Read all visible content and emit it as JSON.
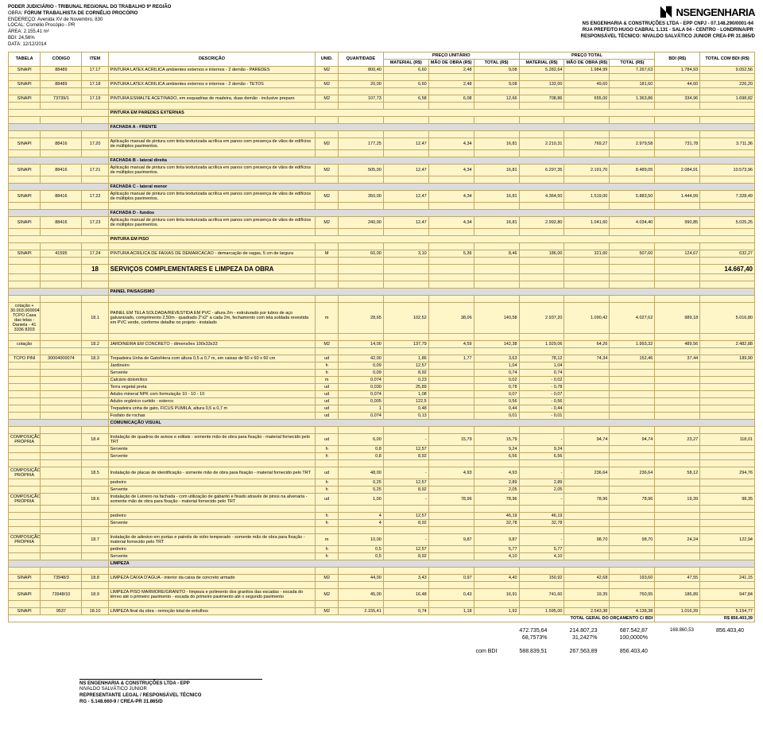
{
  "header": {
    "court": "PODER JUDICIÁRIO - TRIBUNAL REGIONAL DO TRABALHO 9ª REGIÃO",
    "obra_label": "OBRA:",
    "obra": "FÓRUM TRABALHISTA DE CORNÉLIO PROCÓPIO",
    "endereco_label": "ENDEREÇO:",
    "endereco": "Avenida XV de Novembro, 830",
    "local_label": "LOCAL:",
    "local": "Cornélio Procópio - PR",
    "area_label": "ÁREA:",
    "area": "2.155,41 m²",
    "bdi_label": "BDI:",
    "bdi": "24,56%",
    "data_label": "DATA:",
    "data": "12/12/2014",
    "company_name": "NSENGENHARIA",
    "line1": "NS ENGENHARIA & CONSTRUÇÕES LTDA - EPP        CNPJ - 07.148.290/0001-64",
    "line2": "RUA PREFEITO HUGO CABRAL 1.131 - SALA 04 - CENTRO - LONDRINA/PR",
    "line3": "RESPONSÁVEL TÉCNICO: NIVALDO SALVÁTICO JUNIOR CREA-PR 31.865/D"
  },
  "cols": {
    "tabela": "TABELA",
    "codigo": "CÓDIGO",
    "item": "ITEM",
    "descricao": "DESCRIÇÃO",
    "unid": "UNID.",
    "quantidade": "QUANTIDADE",
    "preco_unit": "PREÇO UNITÁRIO",
    "preco_total": "PREÇO TOTAL",
    "material": "MATERIAL (R$)",
    "mao": "MÃO DE OBRA (R$)",
    "total": "TOTAL (R$)",
    "bdi_rs": "BDI (R$)",
    "total_bdi": "TOTAL COM BDI (R$)"
  },
  "rows": [
    {
      "t": "data",
      "tab": "SINAPI",
      "cod": "88489",
      "item": "17.17",
      "desc": "PINTURA LATEX ACRILICA ambientes externos e internos - 2 demão - PAREDES",
      "un": "M2",
      "qtd": "800,40",
      "umat": "6,60",
      "umao": "2,48",
      "utot": "9,08",
      "tmat": "5.282,64",
      "tmao": "1.984,99",
      "ttot": "7.267,63",
      "bdi": "1.784,93",
      "tcb": "9.052,56"
    },
    {
      "t": "empty"
    },
    {
      "t": "data",
      "tab": "SINAPI",
      "cod": "88489",
      "item": "17.18",
      "desc": "PINTURA LATEX ACRILICA ambientes externos e internos - 2 demão - TETOS",
      "un": "M2",
      "qtd": "20,00",
      "umat": "6,60",
      "umao": "2,48",
      "utot": "9,08",
      "tmat": "132,00",
      "tmao": "49,60",
      "ttot": "181,60",
      "bdi": "44,60",
      "tcb": "226,20"
    },
    {
      "t": "empty"
    },
    {
      "t": "data",
      "tab": "SINAPI",
      "cod": "73739/1",
      "item": "17.19",
      "desc": "PINTURA ESMALTE ACETINADO, em esquadrias de madeira, duas demão - inclusive preparo",
      "un": "M2",
      "qtd": "107,73",
      "umat": "6,58",
      "umao": "6,08",
      "utot": "12,66",
      "tmat": "708,86",
      "tmao": "655,00",
      "ttot": "1.363,86",
      "bdi": "334,96",
      "tcb": "1.698,82"
    },
    {
      "t": "empty"
    },
    {
      "t": "section",
      "desc": "PINTURA EM PAREDES EXTERNAS"
    },
    {
      "t": "empty"
    },
    {
      "t": "grey",
      "desc": "FACHADA A - FRENTE"
    },
    {
      "t": "empty"
    },
    {
      "t": "data",
      "tab": "SINAPI",
      "cod": "88416",
      "item": "17.20",
      "desc": "Aplicação manual de pintura com tinta texturizada acrílica em panos com presença de vãos de edifícios de múltiplos pavimentos.",
      "un": "M2",
      "qtd": "177,25",
      "umat": "12,47",
      "umao": "4,34",
      "utot": "16,81",
      "tmat": "2.210,31",
      "tmao": "769,27",
      "ttot": "2.979,58",
      "bdi": "731,78",
      "tcb": "3.711,36"
    },
    {
      "t": "empty"
    },
    {
      "t": "grey",
      "desc": "FACHADA B - lateral direita"
    },
    {
      "t": "data",
      "tab": "SINAPI",
      "cod": "88416",
      "item": "17.21",
      "desc": "Aplicação manual de pintura com tinta texturizada acrílica em panos com presença de vãos de edifícios de múltiplos pavimentos.",
      "un": "M2",
      "qtd": "505,00",
      "umat": "12,47",
      "umao": "4,34",
      "utot": "16,81",
      "tmat": "6.297,35",
      "tmao": "2.191,70",
      "ttot": "8.489,05",
      "bdi": "2.084,91",
      "tcb": "10.573,96"
    },
    {
      "t": "empty"
    },
    {
      "t": "grey",
      "desc": "FACHADA C - lateral menor"
    },
    {
      "t": "data",
      "tab": "SINAPI",
      "cod": "88416",
      "item": "17.22",
      "desc": "Aplicação manual de pintura com tinta texturizada acrílica em panos com presença de vãos de edifícios de múltiplos pavimentos.",
      "un": "M2",
      "qtd": "350,00",
      "umat": "12,47",
      "umao": "4,34",
      "utot": "16,81",
      "tmat": "4.364,50",
      "tmao": "1.519,00",
      "ttot": "5.883,50",
      "bdi": "1.444,99",
      "tcb": "7.328,49"
    },
    {
      "t": "empty"
    },
    {
      "t": "grey",
      "desc": "FACHADA D - fundos"
    },
    {
      "t": "data",
      "tab": "SINAPI",
      "cod": "88416",
      "item": "17.23",
      "desc": "Aplicação manual de pintura com tinta texturizada acrílica em panos com presença de vãos de edifícios de múltiplos pavimentos.",
      "un": "M2",
      "qtd": "240,00",
      "umat": "12,47",
      "umao": "4,34",
      "utot": "16,81",
      "tmat": "2.992,80",
      "tmao": "1.041,60",
      "ttot": "4.034,40",
      "bdi": "990,85",
      "tcb": "5.025,25"
    },
    {
      "t": "empty"
    },
    {
      "t": "section",
      "desc": "PINTURA EM PISO"
    },
    {
      "t": "empty"
    },
    {
      "t": "data",
      "tab": "SINAPI",
      "cod": "41595",
      "item": "17.24",
      "desc": "PINTURA ACRILICA DE FAIXAS DE DEMARCACAO - demarcação de vagas, 5 cm de largura",
      "un": "M",
      "qtd": "60,00",
      "umat": "3,10",
      "umao": "5,36",
      "utot": "8,46",
      "tmat": "186,00",
      "tmao": "321,60",
      "ttot": "507,60",
      "bdi": "124,67",
      "tcb": "632,27"
    },
    {
      "t": "empty"
    },
    {
      "t": "section18",
      "item": "18",
      "desc": "SERVIÇOS COMPLEMENTARES E LIMPEZA DA OBRA",
      "tcb": "14.667,40"
    },
    {
      "t": "empty"
    },
    {
      "t": "empty"
    },
    {
      "t": "grey",
      "desc": "PAINEL PAISAGISMO"
    },
    {
      "t": "empty"
    },
    {
      "t": "data",
      "tab": "cotação + 30.003.000004 TCPO Casa das telas - Daniela - 41 3336 8203",
      "cod": "",
      "item": "18.1",
      "desc": "PAINEL EM TELA SOLDADA/REVESTIDA EM PVC - altura 2m - estruturado por tubos de aço galvanizado, comprimento 2,50m - quadrado 2\"x2\" a cada 2m, fechamento com tela soldada revestida em PVC verde, conforme detalhe no projeto - instalado",
      "un": "m",
      "qtd": "28,65",
      "umat": "102,52",
      "umao": "38,06",
      "utot": "140,58",
      "tmat": "2.937,20",
      "tmao": "1.090,42",
      "ttot": "4.027,62",
      "bdi": "989,18",
      "tcb": "5.016,80"
    },
    {
      "t": "empty"
    },
    {
      "t": "data",
      "tab": "cotação",
      "cod": "",
      "item": "18.2",
      "desc": "JARDINEIRA EM CONCRETO - dimensões 100x33x33",
      "un": "M2",
      "qtd": "14,00",
      "umat": "137,79",
      "umao": "4,59",
      "utot": "142,38",
      "tmat": "1.929,06",
      "tmao": "64,26",
      "ttot": "1.993,32",
      "bdi": "489,56",
      "tcb": "2.482,88"
    },
    {
      "t": "empty"
    },
    {
      "t": "data",
      "tab": "TCPO PINI",
      "cod": "30004000074",
      "item": "18.3",
      "desc": "Trepadeira Unha de Gato/Hera com altura 0,5 a 0,7 m, em caixas de 60 x 60 x 60 cm",
      "un": "ud",
      "qtd": "42,00",
      "umat": "1,86",
      "umao": "1,77",
      "utot": "3,63",
      "tmat": "78,12",
      "tmao": "74,34",
      "ttot": "152,46",
      "bdi": "37,44",
      "tcb": "189,90"
    },
    {
      "t": "sub",
      "desc": "Jardineiro",
      "un": "h",
      "qtd": "0,09",
      "umat": "12,57",
      "umao": "",
      "utot": "1,04",
      "tmat": "1,04"
    },
    {
      "t": "sub",
      "desc": "Servente",
      "un": "h",
      "qtd": "0,09",
      "umat": "8,92",
      "umao": "",
      "utot": "0,74",
      "tmat": "0,74"
    },
    {
      "t": "sub",
      "desc": "Calcário dolomítico",
      "un": "m",
      "qtd": "0,074",
      "umat": "0,23",
      "umao": "",
      "utot": "0,02",
      "tmat": "- 0,02"
    },
    {
      "t": "sub",
      "desc": "Terra vegetal preta",
      "un": "ud",
      "qtd": "0,030",
      "umat": "25,89",
      "umao": "",
      "utot": "0,78",
      "tmat": "- 0,78"
    },
    {
      "t": "sub",
      "desc": "Adubo mineral NPK com formulação 10 - 10 - 10",
      "un": "ud",
      "qtd": "0,074",
      "umat": "1,08",
      "umao": "",
      "utot": "0,07",
      "tmat": "- 0,07"
    },
    {
      "t": "sub",
      "desc": "Adubo orgânico curtido - esterco",
      "un": "ud",
      "qtd": "0,005",
      "umat": "122,5",
      "umao": "",
      "utot": "0,56",
      "tmat": "- 0,56"
    },
    {
      "t": "sub",
      "desc": "Trepadeira unha de gato, FICUS PUMILA, altura 0,5 a 0,7 m",
      "un": "ud",
      "qtd": "1",
      "umat": "0,48",
      "umao": "",
      "utot": "0,44",
      "tmat": "- 0,44"
    },
    {
      "t": "sub",
      "desc": "Fosfato de rochas",
      "un": "ud",
      "qtd": "0,074",
      "umat": "0,13",
      "umao": "",
      "utot": "0,01",
      "tmat": "- 0,01"
    },
    {
      "t": "grey",
      "desc": "COMUNICAÇÃO VISUAL"
    },
    {
      "t": "empty"
    },
    {
      "t": "data",
      "tab": "COMPOSIÇÃO PRÓPRIA",
      "cod": "",
      "item": "18.4",
      "desc": "Instalação de quadros de avisos e editais - somente mão de obra para fixação - material fornecido pelo TRT",
      "un": "ud",
      "qtd": "6,00",
      "umat": "-",
      "umao": "15,79",
      "utot": "15,79",
      "tmat": "-",
      "tmao": "94,74",
      "ttot": "94,74",
      "bdi": "23,27",
      "tcb": "118,01"
    },
    {
      "t": "sub",
      "desc": "Servente",
      "un": "h",
      "qtd": "0,8",
      "umat": "12,57",
      "umao": "",
      "utot": "9,24",
      "tmat": "9,24"
    },
    {
      "t": "sub",
      "desc": "Servente",
      "un": "h",
      "qtd": "0,8",
      "umat": "8,92",
      "umao": "",
      "utot": "6,56",
      "tmat": "6,56"
    },
    {
      "t": "empty"
    },
    {
      "t": "data",
      "tab": "COMPOSIÇÃO PRÓPRIA",
      "cod": "",
      "item": "18.5",
      "desc": "Instalação de placas de identificação - somente mão de obra para fixação - material fornecido pelo TRT",
      "un": "ud",
      "qtd": "48,00",
      "umat": "-",
      "umao": "4,93",
      "utot": "4,93",
      "tmat": "-",
      "tmao": "236,64",
      "ttot": "236,64",
      "bdi": "58,12",
      "tcb": "294,76"
    },
    {
      "t": "sub",
      "desc": "pedreiro",
      "un": "h",
      "qtd": "0,25",
      "umat": "12,57",
      "umao": "",
      "utot": "2,89",
      "tmat": "2,89"
    },
    {
      "t": "sub",
      "desc": "Servente",
      "un": "h",
      "qtd": "0,25",
      "umat": "8,92",
      "umao": "",
      "utot": "2,05",
      "tmat": "2,05"
    },
    {
      "t": "data",
      "tab": "COMPOSIÇÃO PRÓPRIA",
      "cod": "",
      "item": "18.6",
      "desc": "Instalação de Letreiro na fachada - com utilização de gabarito e fixado através de pinos na alvenaria - somente mão de obra para fixação - material fornecido pelo TRT",
      "un": "ud",
      "qtd": "1,00",
      "umat": "-",
      "umao": "78,96",
      "utot": "78,96",
      "tmat": "-",
      "tmao": "78,96",
      "ttot": "78,96",
      "bdi": "19,39",
      "tcb": "98,35"
    },
    {
      "t": "empty"
    },
    {
      "t": "sub",
      "desc": "pedreiro",
      "un": "h",
      "qtd": "4",
      "umat": "12,57",
      "umao": "",
      "utot": "46,19",
      "tmat": "46,19"
    },
    {
      "t": "sub",
      "desc": "Servente",
      "un": "h",
      "qtd": "4",
      "umat": "8,92",
      "umao": "",
      "utot": "32,78",
      "tmat": "32,78"
    },
    {
      "t": "empty"
    },
    {
      "t": "data",
      "tab": "COMPOSIÇÃO PRÓPRIA",
      "cod": "",
      "item": "18.7",
      "desc": "Instalação de adesivo em portas e painéis de vidro temperado - somente mão de obra para fixação - material fornecido pelo TRT",
      "un": "m",
      "qtd": "10,00",
      "umat": "-",
      "umao": "9,87",
      "utot": "9,87",
      "tmat": "-",
      "tmao": "98,70",
      "ttot": "98,70",
      "bdi": "24,24",
      "tcb": "122,94"
    },
    {
      "t": "sub",
      "desc": "pedreiro",
      "un": "h",
      "qtd": "0,5",
      "umat": "12,57",
      "umao": "",
      "utot": "5,77",
      "tmat": "5,77"
    },
    {
      "t": "sub",
      "desc": "Servente",
      "un": "h",
      "qtd": "0,5",
      "umat": "8,92",
      "umao": "",
      "utot": "4,10",
      "tmat": "4,10"
    },
    {
      "t": "grey",
      "desc": "LIMPEZA"
    },
    {
      "t": "empty"
    },
    {
      "t": "data",
      "tab": "SINAPI",
      "cod": "73948/3",
      "item": "18.8",
      "desc": "LIMPEZA CAIXA D'AGUA - interior da caixa de concreto armado",
      "un": "M2",
      "qtd": "44,00",
      "umat": "3,43",
      "umao": "0,97",
      "utot": "4,40",
      "tmat": "150,92",
      "tmao": "42,68",
      "ttot": "193,60",
      "bdi": "47,55",
      "tcb": "241,15"
    },
    {
      "t": "empty"
    },
    {
      "t": "data",
      "tab": "SINAPI",
      "cod": "73948/10",
      "item": "18.9",
      "desc": "LIMPEZA PISO MARMORE/GRANITO - limpeza e polimento dos granitos das escadas - escada do térreo até o primeiro pavimento - escada do primeiro pavimento até o segundo pavimento",
      "un": "M2",
      "qtd": "45,00",
      "umat": "16,48",
      "umao": "0,43",
      "utot": "16,91",
      "tmat": "741,60",
      "tmao": "19,35",
      "ttot": "760,95",
      "bdi": "186,89",
      "tcb": "947,84"
    },
    {
      "t": "empty"
    },
    {
      "t": "data",
      "tab": "SINAPI",
      "cod": "9537",
      "item": "18.10",
      "desc": "LIMPEZA final da obra - remoção total de entulhos",
      "un": "M2",
      "qtd": "2.155,41",
      "umat": "0,74",
      "umao": "1,18",
      "utot": "1,92",
      "tmat": "1.595,00",
      "tmao": "2.543,38",
      "ttot": "4.138,38",
      "bdi": "1.016,39",
      "tcb": "5.154,77"
    }
  ],
  "total_label": "TOTAL GERAL DO ORÇAMENTO C/ BDI",
  "total_value": "R$    856.403,39",
  "summary": {
    "r1": [
      "472.735,64",
      "214.807,23",
      "687.542,87",
      "168.860,53",
      "856.403,40"
    ],
    "r2": [
      "68,7573%",
      "31,2427%",
      "100,0000%",
      "",
      ""
    ],
    "r3_label": "com BDI",
    "r3": [
      "588.839,51",
      "267.563,89",
      "856.403,40"
    ]
  },
  "footer": {
    "l1": "NS ENGENHARIA & CONSTRUÇÕES LTDA - EPP",
    "l2": "NIVALDO SALVÁTICO JUNIOR",
    "l3": "REPRESENTANTE LEGAL / RESPONSÁVEL TÉCNICO",
    "l4": "RG - 5.148.660-9 / CREA-PR 31.865/D"
  }
}
